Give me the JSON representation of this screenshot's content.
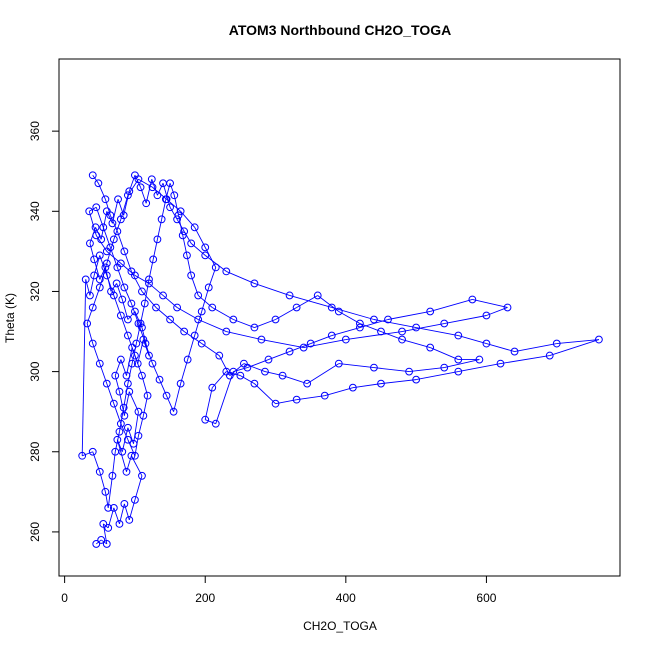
{
  "chart_data": {
    "type": "scatter",
    "title": "ATOM3 Northbound CH2O_TOGA",
    "xlabel": "CH2O_TOGA",
    "ylabel": "Theta (K)",
    "xlim": [
      -8,
      790
    ],
    "ylim": [
      249,
      378
    ],
    "xticks": [
      0,
      200,
      400,
      600
    ],
    "yticks": [
      260,
      280,
      300,
      320,
      340,
      360
    ],
    "grid": false,
    "legend": "none",
    "marker": "open-circle",
    "connected": true,
    "color": "#0000ff",
    "series": [
      {
        "values": [
          [
            45,
            257
          ],
          [
            52,
            258
          ],
          [
            60,
            257
          ],
          [
            55,
            262
          ],
          [
            62,
            261
          ],
          [
            70,
            266
          ],
          [
            78,
            262
          ],
          [
            85,
            267
          ],
          [
            92,
            263
          ],
          [
            100,
            268
          ],
          [
            110,
            274
          ],
          [
            95,
            279
          ],
          [
            88,
            275
          ],
          [
            75,
            283
          ],
          [
            82,
            280
          ],
          [
            90,
            286
          ],
          [
            98,
            282
          ],
          [
            105,
            290
          ],
          [
            92,
            295
          ],
          [
            85,
            289
          ],
          [
            78,
            295
          ],
          [
            72,
            299
          ],
          [
            80,
            303
          ],
          [
            88,
            299
          ],
          [
            96,
            306
          ],
          [
            104,
            302
          ],
          [
            112,
            308
          ],
          [
            120,
            304
          ],
          [
            110,
            311
          ],
          [
            100,
            315
          ],
          [
            90,
            313
          ],
          [
            82,
            318
          ],
          [
            74,
            322
          ],
          [
            66,
            320
          ],
          [
            58,
            326
          ],
          [
            50,
            323
          ],
          [
            42,
            328
          ],
          [
            36,
            332
          ],
          [
            44,
            336
          ],
          [
            52,
            333
          ],
          [
            60,
            340
          ],
          [
            68,
            337
          ],
          [
            76,
            343
          ],
          [
            84,
            339
          ],
          [
            92,
            345
          ],
          [
            100,
            349
          ],
          [
            108,
            346
          ],
          [
            116,
            342
          ],
          [
            124,
            348
          ],
          [
            132,
            344
          ],
          [
            140,
            347
          ],
          [
            150,
            341
          ],
          [
            160,
            338
          ],
          [
            170,
            335
          ],
          [
            180,
            332
          ],
          [
            200,
            329
          ],
          [
            230,
            325
          ],
          [
            270,
            322
          ],
          [
            320,
            319
          ],
          [
            380,
            316
          ],
          [
            440,
            313
          ],
          [
            500,
            311
          ],
          [
            560,
            309
          ],
          [
            600,
            307
          ],
          [
            640,
            305
          ],
          [
            700,
            307
          ],
          [
            760,
            308
          ],
          [
            690,
            304
          ],
          [
            620,
            302
          ],
          [
            560,
            300
          ],
          [
            500,
            298
          ],
          [
            450,
            297
          ],
          [
            410,
            296
          ],
          [
            370,
            294
          ],
          [
            330,
            293
          ],
          [
            300,
            292
          ],
          [
            270,
            297
          ],
          [
            250,
            299
          ],
          [
            230,
            300
          ],
          [
            210,
            296
          ],
          [
            200,
            288
          ],
          [
            215,
            287
          ],
          [
            240,
            300
          ],
          [
            260,
            301
          ],
          [
            290,
            303
          ],
          [
            320,
            305
          ],
          [
            350,
            307
          ],
          [
            380,
            309
          ],
          [
            420,
            311
          ],
          [
            460,
            313
          ],
          [
            520,
            315
          ],
          [
            580,
            318
          ],
          [
            630,
            316
          ],
          [
            600,
            314
          ],
          [
            540,
            312
          ],
          [
            480,
            310
          ],
          [
            400,
            308
          ],
          [
            340,
            306
          ],
          [
            280,
            308
          ],
          [
            230,
            310
          ],
          [
            190,
            313
          ],
          [
            160,
            316
          ],
          [
            140,
            319
          ],
          [
            120,
            322
          ],
          [
            100,
            324
          ],
          [
            80,
            327
          ],
          [
            60,
            330
          ],
          [
            45,
            334
          ],
          [
            35,
            340
          ],
          [
            45,
            341
          ],
          [
            55,
            336
          ],
          [
            65,
            331
          ],
          [
            75,
            326
          ],
          [
            85,
            321
          ],
          [
            95,
            317
          ],
          [
            105,
            312
          ],
          [
            115,
            307
          ],
          [
            125,
            302
          ],
          [
            135,
            298
          ],
          [
            145,
            294
          ],
          [
            155,
            290
          ],
          [
            165,
            297
          ],
          [
            175,
            303
          ],
          [
            185,
            309
          ],
          [
            195,
            315
          ],
          [
            205,
            321
          ],
          [
            215,
            326
          ],
          [
            200,
            331
          ],
          [
            185,
            336
          ],
          [
            165,
            340
          ],
          [
            145,
            343
          ],
          [
            125,
            346
          ],
          [
            105,
            348
          ],
          [
            90,
            344
          ],
          [
            80,
            338
          ],
          [
            70,
            333
          ],
          [
            60,
            327
          ],
          [
            50,
            321
          ],
          [
            40,
            316
          ],
          [
            32,
            312
          ],
          [
            40,
            307
          ],
          [
            50,
            302
          ],
          [
            60,
            297
          ],
          [
            70,
            292
          ],
          [
            80,
            287
          ],
          [
            90,
            283
          ],
          [
            100,
            279
          ],
          [
            105,
            284
          ],
          [
            112,
            289
          ],
          [
            118,
            294
          ],
          [
            110,
            299
          ],
          [
            100,
            304
          ],
          [
            90,
            309
          ],
          [
            80,
            314
          ],
          [
            70,
            319
          ],
          [
            60,
            324
          ],
          [
            50,
            329
          ],
          [
            42,
            324
          ],
          [
            36,
            319
          ],
          [
            30,
            323
          ],
          [
            25,
            279
          ],
          [
            40,
            280
          ],
          [
            50,
            275
          ],
          [
            58,
            270
          ],
          [
            62,
            266
          ],
          [
            68,
            274
          ],
          [
            72,
            280
          ],
          [
            78,
            285
          ],
          [
            84,
            291
          ],
          [
            90,
            297
          ],
          [
            96,
            302
          ],
          [
            102,
            307
          ],
          [
            108,
            312
          ],
          [
            114,
            317
          ],
          [
            120,
            323
          ],
          [
            126,
            328
          ],
          [
            132,
            333
          ],
          [
            138,
            338
          ],
          [
            144,
            343
          ],
          [
            150,
            347
          ],
          [
            156,
            344
          ],
          [
            162,
            339
          ],
          [
            168,
            334
          ],
          [
            174,
            329
          ],
          [
            180,
            324
          ],
          [
            190,
            319
          ],
          [
            210,
            316
          ],
          [
            240,
            313
          ],
          [
            270,
            311
          ],
          [
            300,
            313
          ],
          [
            330,
            316
          ],
          [
            360,
            319
          ],
          [
            390,
            315
          ],
          [
            420,
            312
          ],
          [
            450,
            310
          ],
          [
            480,
            308
          ],
          [
            520,
            306
          ],
          [
            560,
            303
          ],
          [
            590,
            303
          ],
          [
            540,
            301
          ],
          [
            490,
            300
          ],
          [
            440,
            301
          ],
          [
            390,
            302
          ],
          [
            345,
            297
          ],
          [
            310,
            299
          ],
          [
            285,
            300
          ],
          [
            255,
            302
          ],
          [
            235,
            299
          ],
          [
            220,
            304
          ],
          [
            195,
            307
          ],
          [
            170,
            310
          ],
          [
            150,
            313
          ],
          [
            130,
            316
          ],
          [
            110,
            320
          ],
          [
            95,
            325
          ],
          [
            85,
            330
          ],
          [
            75,
            335
          ],
          [
            65,
            339
          ],
          [
            58,
            343
          ],
          [
            48,
            347
          ],
          [
            40,
            349
          ]
        ]
      }
    ]
  }
}
